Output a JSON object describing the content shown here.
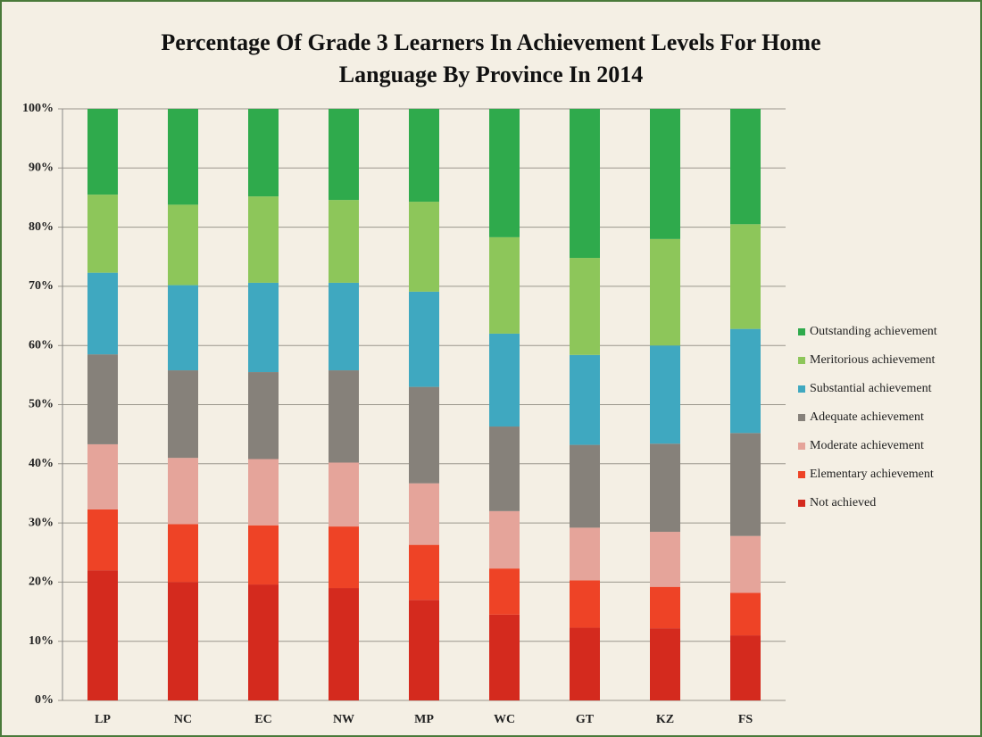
{
  "chart_data": {
    "type": "stacked_bar",
    "title": [
      "Percentage Of Grade 3 Learners In Achievement Levels For  Home",
      "Language By Province In 2014"
    ],
    "categories": [
      "LP",
      "NC",
      "EC",
      "NW",
      "MP",
      "WC",
      "GT",
      "KZ",
      "FS"
    ],
    "series": [
      {
        "name": "Not achieved",
        "color": "#d42a1e",
        "values": [
          22,
          20,
          19.6,
          19,
          17,
          14.5,
          12.3,
          12.2,
          11
        ]
      },
      {
        "name": "Elementary achievement",
        "color": "#ee4326",
        "values": [
          10.3,
          9.8,
          10,
          10.4,
          9.3,
          7.8,
          8,
          7,
          7.2
        ]
      },
      {
        "name": "Moderate achievement",
        "color": "#e5a49a",
        "values": [
          11,
          11.2,
          11.2,
          10.8,
          10.4,
          9.7,
          8.9,
          9.3,
          9.6
        ]
      },
      {
        "name": "Adequate achievement",
        "color": "#86817a",
        "values": [
          15.2,
          14.8,
          14.7,
          15.6,
          16.3,
          14.3,
          14,
          14.9,
          17.4
        ]
      },
      {
        "name": "Substantial achievement",
        "color": "#3fa8c0",
        "values": [
          13.8,
          14.4,
          15.1,
          14.8,
          16.1,
          15.7,
          15.2,
          16.6,
          17.6
        ]
      },
      {
        "name": "Meritorious achievement",
        "color": "#8dc65a",
        "values": [
          13.2,
          13.6,
          14.6,
          14,
          15.2,
          16.3,
          16.4,
          18,
          17.7
        ]
      },
      {
        "name": "Outstanding achievement",
        "color": "#2faa4c",
        "values": [
          14.5,
          16.2,
          14.8,
          15.4,
          15.7,
          21.7,
          25.2,
          22,
          19.5
        ]
      }
    ],
    "ylim": [
      0,
      100
    ],
    "yticks": [
      {
        "value": 0,
        "label": "0%"
      },
      {
        "value": 10,
        "label": "10%"
      },
      {
        "value": 20,
        "label": "20%"
      },
      {
        "value": 30,
        "label": "30%"
      },
      {
        "value": 40,
        "label": "40%"
      },
      {
        "value": 50,
        "label": "50%"
      },
      {
        "value": 60,
        "label": "60%"
      },
      {
        "value": 70,
        "label": "70%"
      },
      {
        "value": 80,
        "label": "80%"
      },
      {
        "value": 90,
        "label": "90%"
      },
      {
        "value": 100,
        "label": "100%"
      }
    ],
    "grid": true,
    "legend": "right"
  }
}
